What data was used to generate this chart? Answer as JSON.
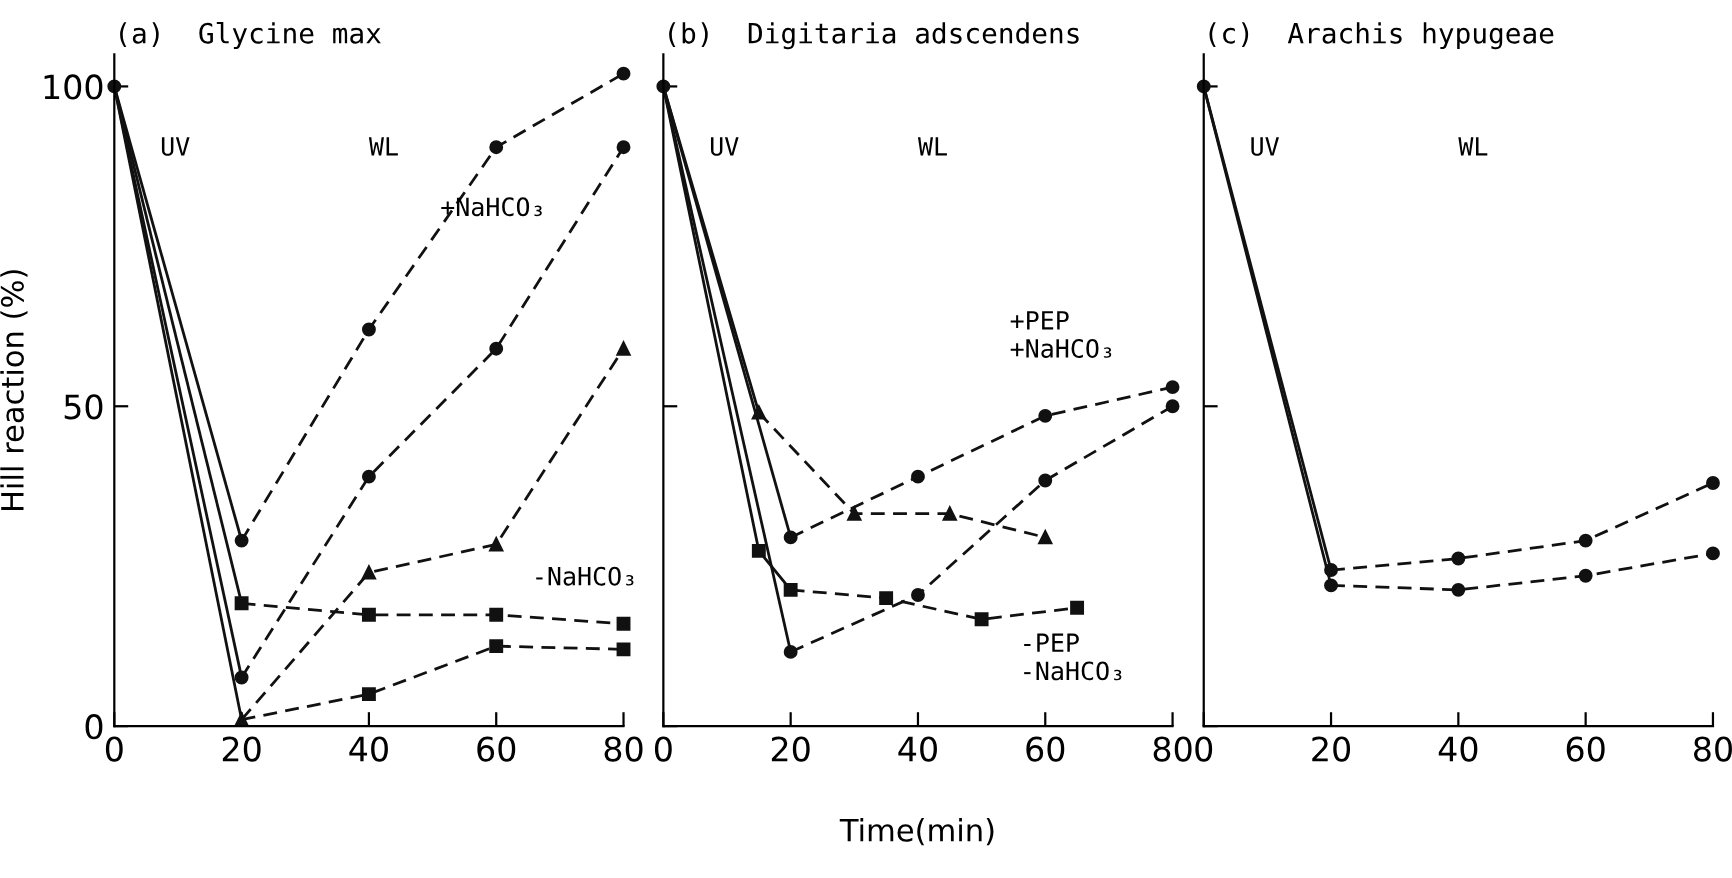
{
  "chart_data": [
    {
      "type": "line",
      "title": "(a)  Glycine max",
      "ylabel": "Hill reaction (%)",
      "xlim": [
        0,
        80
      ],
      "ylim": [
        0,
        105
      ],
      "xticks": [
        0,
        20,
        40,
        60,
        80
      ],
      "yticks": [
        0,
        50,
        100
      ],
      "grid": false,
      "legend": false,
      "series": [
        {
          "color": "#111111",
          "x": [
            0,
            20
          ],
          "values": [
            100,
            29
          ],
          "line_style": "solid",
          "marker": "circle"
        },
        {
          "color": "#111111",
          "x": [
            20,
            40,
            60,
            80
          ],
          "values": [
            29,
            62,
            90.5,
            102
          ],
          "line_style": "dashed",
          "marker": "circle"
        },
        {
          "color": "#111111",
          "x": [
            0,
            20
          ],
          "values": [
            100,
            19.2
          ],
          "line_style": "solid",
          "marker": "square"
        },
        {
          "color": "#111111",
          "x": [
            20,
            40,
            60,
            80
          ],
          "values": [
            19.2,
            17.4,
            17.4,
            16
          ],
          "line_style": "dashed",
          "marker": "square"
        },
        {
          "color": "#111111",
          "x": [
            0,
            20
          ],
          "values": [
            100,
            7.6
          ],
          "line_style": "solid",
          "marker": "circle"
        },
        {
          "color": "#111111",
          "x": [
            20,
            40,
            60,
            80
          ],
          "values": [
            7.6,
            39,
            59,
            90.5
          ],
          "line_style": "dashed",
          "marker": "circle"
        },
        {
          "color": "#111111",
          "x": [
            0,
            20
          ],
          "values": [
            100,
            1
          ],
          "line_style": "solid",
          "marker": "triangle"
        },
        {
          "color": "#111111",
          "x": [
            20,
            40,
            60,
            80
          ],
          "values": [
            1,
            24,
            28.4,
            59
          ],
          "line_style": "dashed",
          "marker": "triangle"
        },
        {
          "color": "#111111",
          "x": [
            20,
            40,
            60,
            80
          ],
          "values": [
            1,
            5,
            12.5,
            12
          ],
          "line_style": "dashed",
          "marker": "square"
        }
      ],
      "annotations": [
        "UV",
        "WL",
        "+NaHCO₃",
        "-NaHCO₃"
      ]
    },
    {
      "type": "line",
      "title": "(b)  Digitaria adscendens",
      "xlabel": "Time(min)",
      "xlim": [
        0,
        80
      ],
      "ylim": [
        0,
        105
      ],
      "xticks": [
        0,
        20,
        40,
        60,
        80
      ],
      "yticks": [
        {
          "value": 0,
          "label": null
        },
        {
          "value": 50,
          "label": null
        },
        {
          "value": 100,
          "label": null
        }
      ],
      "tick_labels": "x",
      "grid": false,
      "legend": false,
      "series": [
        {
          "color": "#111111",
          "x": [
            0,
            20
          ],
          "values": [
            100,
            29.5
          ],
          "line_style": "solid",
          "marker": "circle"
        },
        {
          "color": "#111111",
          "x": [
            20,
            40,
            60,
            80
          ],
          "values": [
            29.5,
            39,
            48.5,
            53
          ],
          "line_style": "dashed",
          "marker": "circle"
        },
        {
          "color": "#111111",
          "x": [
            0,
            20
          ],
          "values": [
            100,
            11.6
          ],
          "line_style": "solid",
          "marker": "circle"
        },
        {
          "color": "#111111",
          "x": [
            20,
            40,
            60,
            80
          ],
          "values": [
            11.6,
            20.5,
            38.4,
            50
          ],
          "line_style": "dashed",
          "marker": "circle"
        },
        {
          "color": "#111111",
          "x": [
            0,
            15
          ],
          "values": [
            100,
            49
          ],
          "line_style": "solid",
          "marker": "triangle"
        },
        {
          "color": "#111111",
          "x": [
            15,
            30,
            45,
            60
          ],
          "values": [
            49,
            33.2,
            33.2,
            29.5
          ],
          "line_style": "dashed",
          "marker": "triangle"
        },
        {
          "color": "#111111",
          "x": [
            0,
            15,
            20
          ],
          "values": [
            100,
            27.4,
            21.3
          ],
          "line_style": "solid",
          "marker": "square"
        },
        {
          "color": "#111111",
          "x": [
            20,
            35,
            50,
            65
          ],
          "values": [
            21.3,
            20,
            16.7,
            18.5
          ],
          "line_style": "dashed",
          "marker": "square"
        }
      ],
      "annotations": [
        "UV",
        "WL",
        "+PEP\n+NaHCO₃",
        "-PEP\n-NaHCO₃"
      ]
    },
    {
      "type": "line",
      "title": "(c)  Arachis hypugeae",
      "xlim": [
        0,
        80
      ],
      "ylim": [
        0,
        105
      ],
      "xticks": [
        0,
        20,
        40,
        60,
        80
      ],
      "yticks": [
        {
          "value": 0,
          "label": null
        },
        {
          "value": 50,
          "label": null
        },
        {
          "value": 100,
          "label": null
        }
      ],
      "tick_labels": "x",
      "grid": false,
      "legend": false,
      "series": [
        {
          "color": "#111111",
          "x": [
            0,
            20
          ],
          "values": [
            100,
            24.4
          ],
          "line_style": "solid",
          "marker": "circle"
        },
        {
          "color": "#111111",
          "x": [
            20,
            40,
            60,
            80
          ],
          "values": [
            24.4,
            26.2,
            29,
            38
          ],
          "line_style": "dashed",
          "marker": "circle"
        },
        {
          "color": "#111111",
          "x": [
            0,
            20
          ],
          "values": [
            100,
            22
          ],
          "line_style": "solid",
          "marker": "circle"
        },
        {
          "color": "#111111",
          "x": [
            20,
            40,
            60,
            80
          ],
          "values": [
            22,
            21.3,
            23.5,
            27
          ],
          "line_style": "dashed",
          "marker": "circle"
        }
      ],
      "annotations": [
        "UV",
        "WL"
      ]
    }
  ]
}
